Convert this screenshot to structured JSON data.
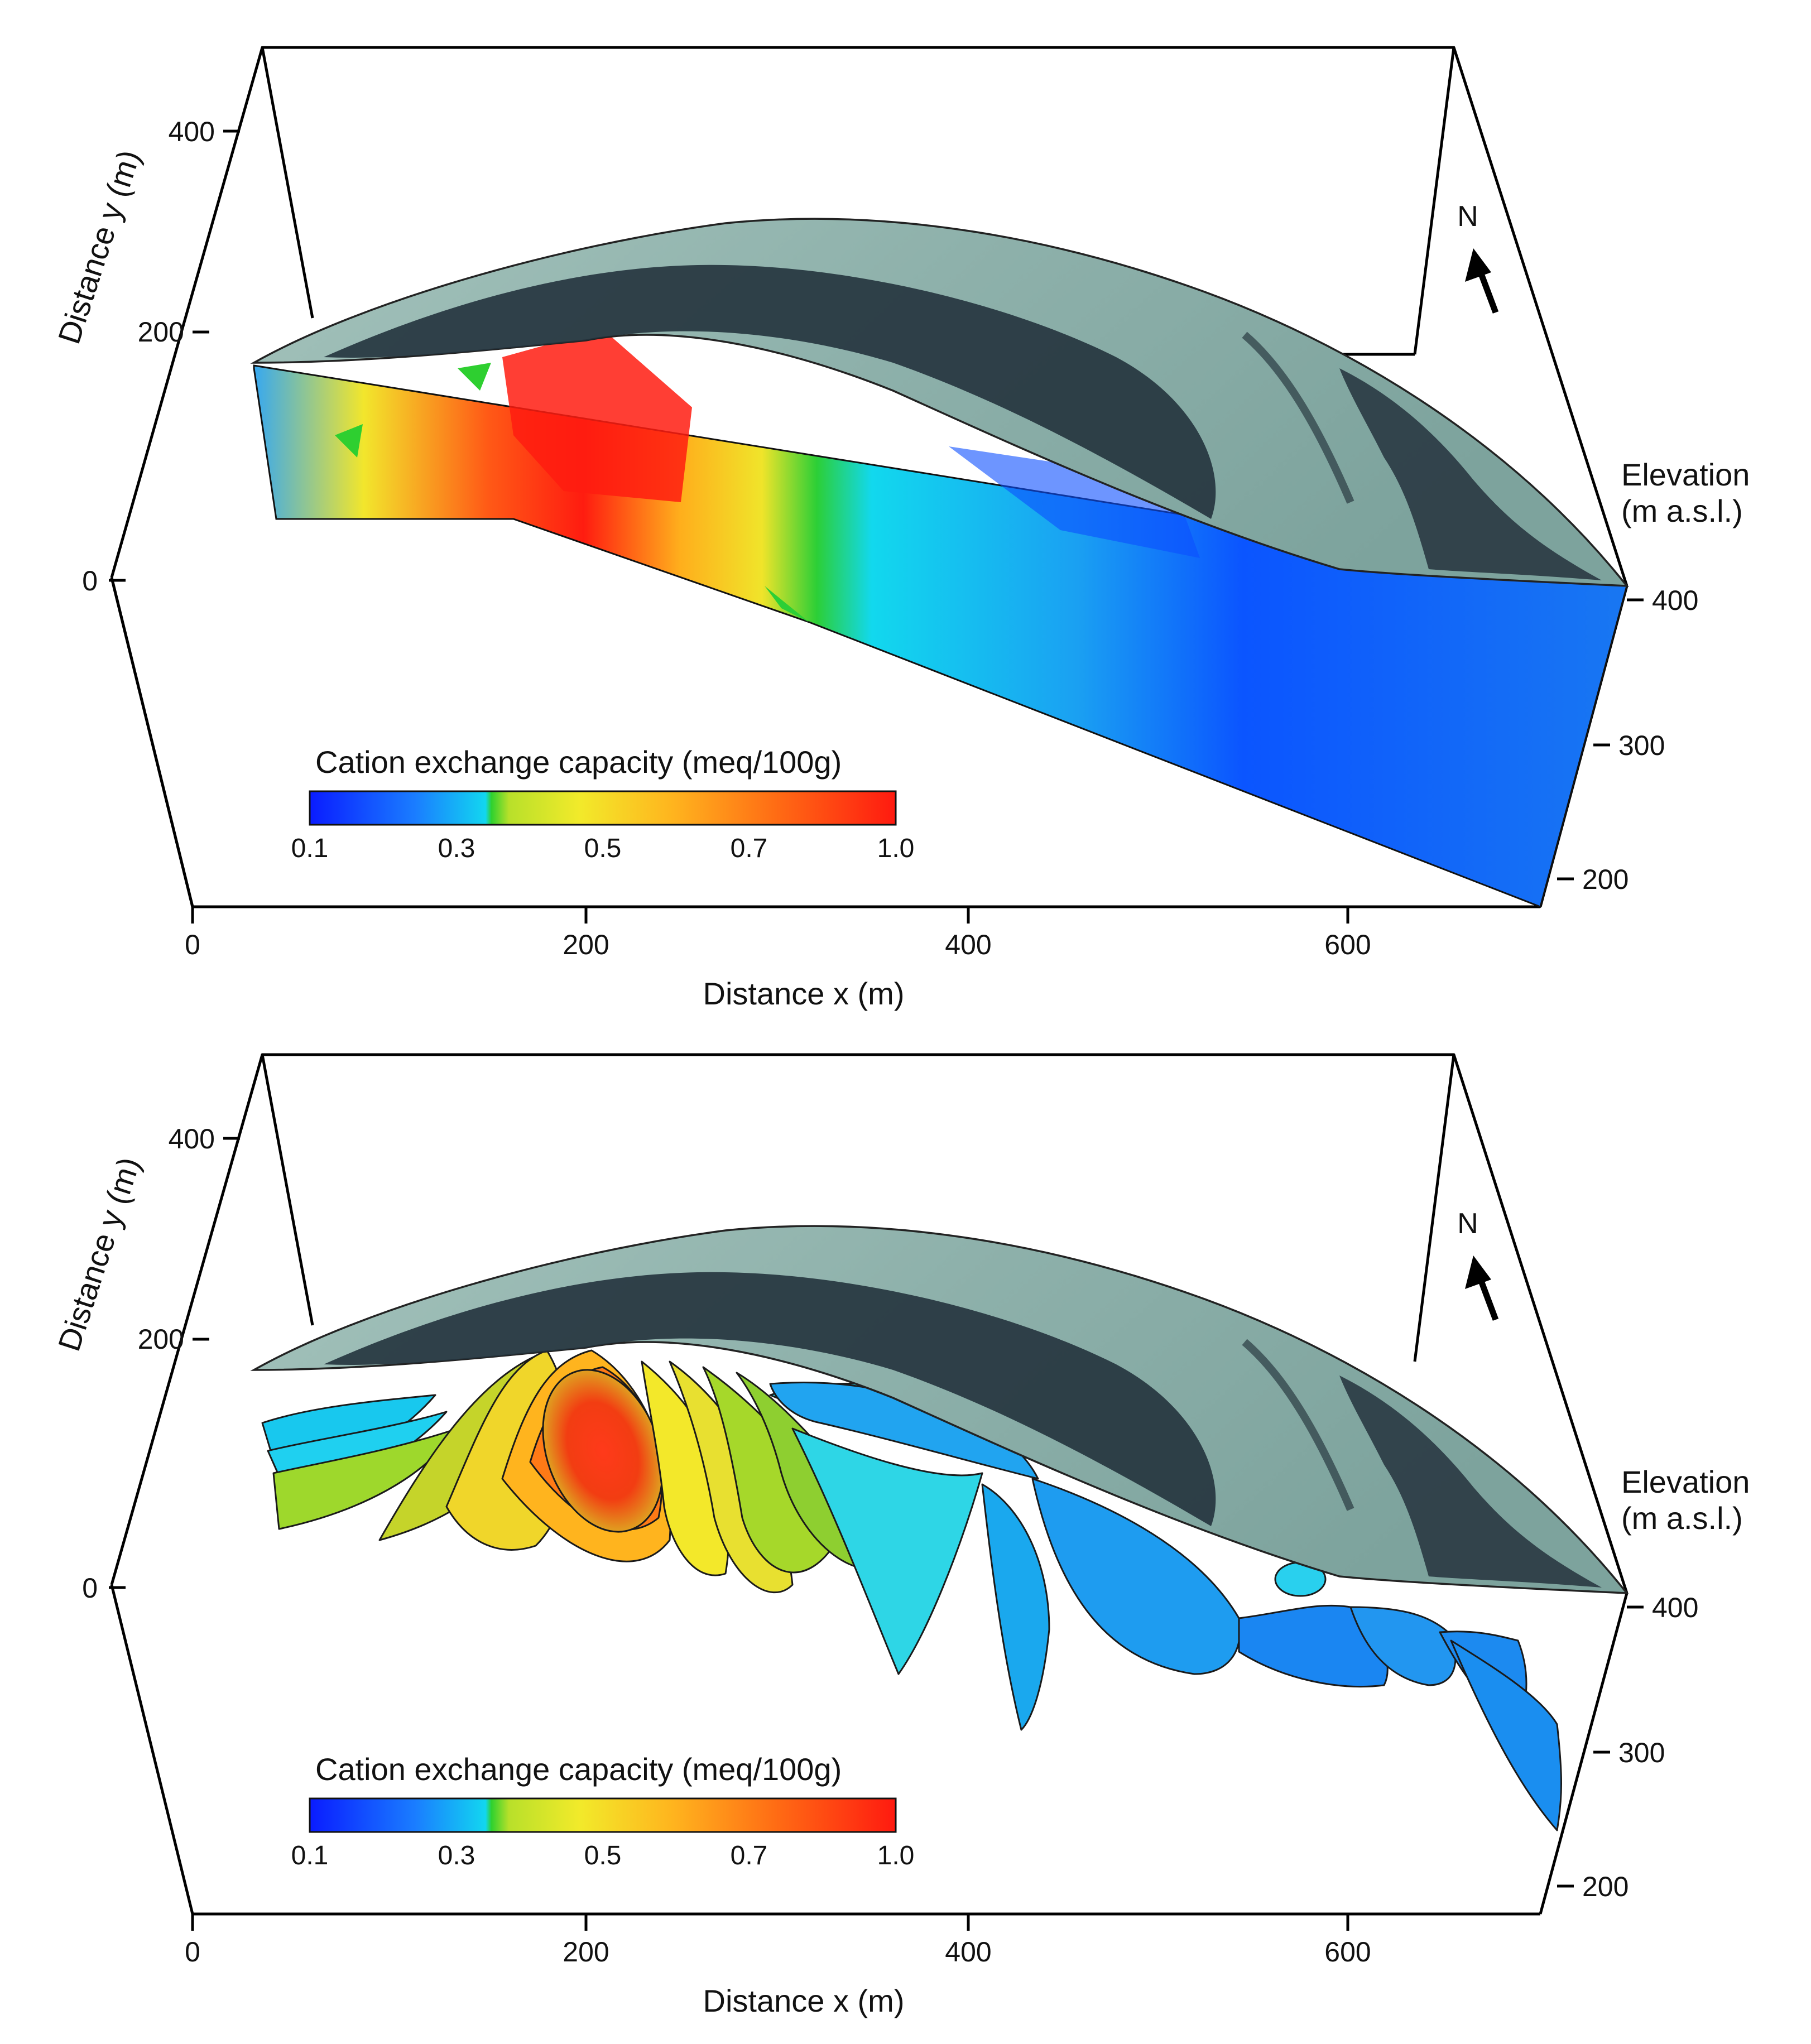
{
  "panels": [
    {
      "id": "block",
      "y_axis": {
        "title": "Distance y (m)",
        "ticks": [
          "400",
          "200",
          "0"
        ]
      },
      "x_axis": {
        "title": "Distance x (m)",
        "ticks": [
          "0",
          "200",
          "400",
          "600"
        ]
      },
      "z_axis": {
        "title_line1": "Elevation",
        "title_line2": "(m a.s.l.)",
        "ticks": [
          "400",
          "300",
          "200"
        ]
      },
      "north_label": "N",
      "legend": {
        "title": "Cation exchange capacity (meq/100g)",
        "ticks": [
          "0.1",
          "0.3",
          "0.5",
          "0.7",
          "1.0"
        ]
      }
    },
    {
      "id": "isosurfaces",
      "y_axis": {
        "title": "Distance y (m)",
        "ticks": [
          "400",
          "200",
          "0"
        ]
      },
      "x_axis": {
        "title": "Distance x (m)",
        "ticks": [
          "0",
          "200",
          "400",
          "600"
        ]
      },
      "z_axis": {
        "title_line1": "Elevation",
        "title_line2": "(m a.s.l.)",
        "ticks": [
          "400",
          "300",
          "200"
        ]
      },
      "north_label": "N",
      "legend": {
        "title": "Cation exchange capacity (meq/100g)",
        "ticks": [
          "0.1",
          "0.3",
          "0.5",
          "0.7",
          "1.0"
        ]
      }
    }
  ],
  "colors": {
    "cec_low": "#0a3dff",
    "cec_mid_low": "#00e0f0",
    "cec_mid": "#2ed12e",
    "cec_mid_high": "#f2ea2a",
    "cec_high": "#ff1a10",
    "terrain_light": "#8fb3ad",
    "terrain_dark": "#23323c"
  }
}
